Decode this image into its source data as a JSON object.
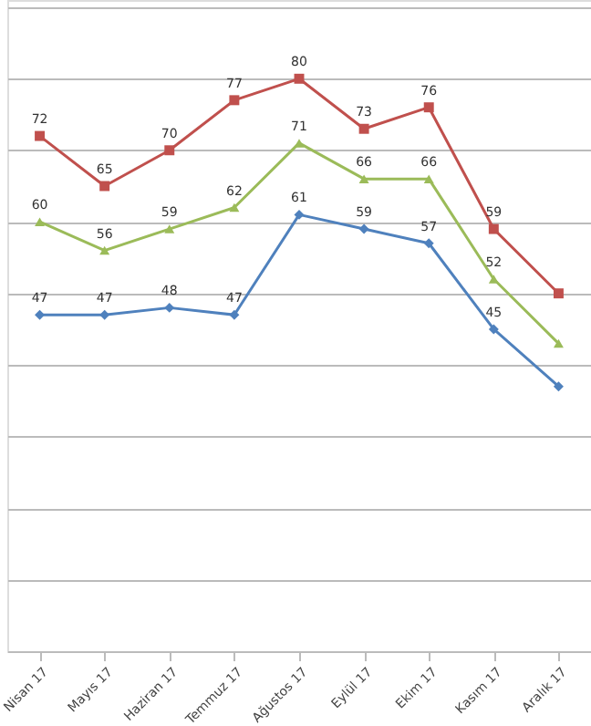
{
  "chart_data": {
    "type": "line",
    "categories": [
      "Nisan 17",
      "Mayıs 17",
      "Haziran 17",
      "Temmuz 17",
      "Ağustos 17",
      "Eylül 17",
      "Ekim 17",
      "Kasım 17",
      "Aralık 17"
    ],
    "series": [
      {
        "color": "#c0504d",
        "marker": "square",
        "values": [
          72,
          65,
          70,
          77,
          80,
          73,
          76,
          59,
          50
        ],
        "value_labels": [
          "72",
          "65",
          "70",
          "77",
          "80",
          "73",
          "76",
          "59",
          null
        ]
      },
      {
        "color": "#9bbb59",
        "marker": "triangle",
        "values": [
          60,
          56,
          59,
          62,
          71,
          66,
          66,
          52,
          43
        ],
        "value_labels": [
          "60",
          "56",
          "59",
          "62",
          "71",
          "66",
          "66",
          "52",
          null
        ]
      },
      {
        "color": "#4f81bd",
        "marker": "diamond",
        "values": [
          47,
          47,
          48,
          47,
          61,
          59,
          57,
          45,
          37
        ],
        "value_labels": [
          "47",
          "47",
          "48",
          "47",
          "61",
          "59",
          "57",
          "45",
          null
        ]
      }
    ],
    "ylim": [
      0,
      91
    ],
    "tick_labels": "x",
    "grid": "y",
    "line_style": "solid"
  }
}
